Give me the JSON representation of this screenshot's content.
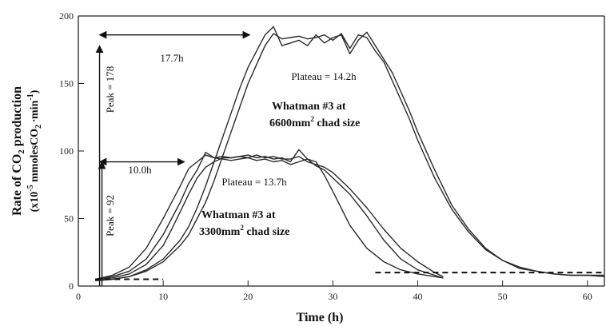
{
  "chart_data": {
    "type": "line",
    "xlabel": "Time (h)",
    "ylabel": {
      "line1_main": "Rate of CO",
      "line1_sub": "2",
      "line1_end": " production",
      "line2_a": "(x10",
      "line2_sup": "-5",
      "line2_b": " mmolesCO",
      "line2_sub": "2",
      "line2_c": " ∙min",
      "line2_sup2": "-1",
      "line2_d": ")"
    },
    "xlim": [
      0,
      62
    ],
    "ylim": [
      0,
      200
    ],
    "xticks": [
      0,
      10,
      20,
      30,
      40,
      50,
      60
    ],
    "yticks": [
      0,
      50,
      100,
      150,
      200
    ],
    "grid": false,
    "series": [
      {
        "x": [
          2,
          4,
          6,
          8,
          10,
          12,
          13,
          14,
          15,
          16,
          17,
          18,
          19,
          20,
          21,
          22,
          23,
          24,
          25,
          26,
          27,
          28,
          29,
          30,
          31,
          32,
          33,
          34,
          35,
          36,
          37,
          38,
          39,
          40,
          42,
          44,
          46,
          48,
          50,
          52,
          54,
          56,
          58,
          60,
          62
        ],
        "y": [
          4,
          5,
          7,
          11,
          18,
          30,
          38,
          50,
          62,
          78,
          96,
          114,
          132,
          150,
          164,
          178,
          187,
          183,
          184,
          185,
          183,
          184,
          186,
          182,
          187,
          176,
          186,
          184,
          174,
          166,
          152,
          138,
          124,
          108,
          80,
          57,
          40,
          27,
          19,
          14,
          11,
          9,
          8,
          8,
          8
        ]
      },
      {
        "x": [
          2,
          4,
          6,
          8,
          10,
          12,
          13,
          14,
          15,
          16,
          17,
          18,
          19,
          20,
          21,
          22,
          23,
          24,
          25,
          26,
          27,
          28,
          29,
          30,
          31,
          32,
          33,
          34,
          35,
          36,
          37,
          38,
          39,
          40,
          42,
          44,
          46,
          48,
          50,
          52,
          54,
          56,
          58,
          60,
          62
        ],
        "y": [
          4,
          5,
          7,
          12,
          20,
          34,
          44,
          58,
          74,
          92,
          110,
          128,
          146,
          162,
          174,
          186,
          192,
          178,
          180,
          182,
          178,
          186,
          180,
          184,
          186,
          172,
          182,
          188,
          178,
          168,
          158,
          144,
          130,
          114,
          86,
          60,
          42,
          28,
          19,
          13,
          11,
          9,
          8,
          8,
          7
        ]
      },
      {
        "x": [
          2,
          4,
          6,
          8,
          10,
          11,
          12,
          13,
          14,
          15,
          16,
          17,
          18,
          19,
          20,
          21,
          22,
          23,
          24,
          25,
          26,
          27,
          28,
          29,
          30,
          32,
          34,
          36,
          38,
          40,
          42,
          43
        ],
        "y": [
          5,
          8,
          14,
          28,
          50,
          62,
          74,
          87,
          92,
          97,
          95,
          96,
          95,
          96,
          97,
          95,
          96,
          94,
          95,
          92,
          101,
          94,
          92,
          82,
          70,
          45,
          28,
          18,
          12,
          9,
          7,
          6
        ]
      },
      {
        "x": [
          2,
          4,
          6,
          8,
          10,
          11,
          12,
          13,
          14,
          15,
          16,
          17,
          18,
          19,
          20,
          21,
          22,
          23,
          24,
          25,
          26,
          27,
          28,
          29,
          30,
          32,
          34,
          36,
          38,
          40,
          42,
          43
        ],
        "y": [
          5,
          7,
          11,
          20,
          38,
          50,
          62,
          76,
          86,
          99,
          95,
          94,
          93,
          94,
          95,
          93,
          94,
          92,
          93,
          90,
          92,
          94,
          89,
          86,
          80,
          68,
          52,
          34,
          20,
          12,
          8,
          6
        ]
      },
      {
        "x": [
          2,
          4,
          6,
          8,
          10,
          11,
          12,
          13,
          14,
          15,
          16,
          17,
          18,
          19,
          20,
          21,
          22,
          23,
          24,
          25,
          26,
          27,
          28,
          29,
          30,
          32,
          34,
          36,
          38,
          40,
          42,
          43
        ],
        "y": [
          5,
          6,
          9,
          16,
          30,
          42,
          55,
          68,
          80,
          88,
          92,
          95,
          95,
          96,
          95,
          97,
          95,
          96,
          94,
          94,
          96,
          92,
          90,
          88,
          84,
          72,
          58,
          42,
          28,
          18,
          10,
          7
        ]
      }
    ],
    "baselines": [
      {
        "x": [
          2,
          10
        ],
        "y": 5
      },
      {
        "x": [
          35,
          62
        ],
        "y": 10
      }
    ],
    "annotations": {
      "peak1_text": "Peak = 178",
      "peak1_value": 178,
      "peak2_text": "Peak = 92",
      "peak2_value": 92,
      "duration1_text": "17.7h",
      "duration1_range": [
        2.5,
        20.2
      ],
      "duration1_y": 186,
      "duration2_text": "10.0h",
      "duration2_range": [
        2.5,
        12.5
      ],
      "duration2_y": 92,
      "plateau1_text": "Plateau = 14.2h",
      "plateau2_text": "Plateau = 13.7h",
      "condition1_line1": "Whatman #3 at",
      "condition1_line2_a": "6600mm",
      "condition1_line2_sup": "2",
      "condition1_line2_b": " chad size",
      "condition2_line1": "Whatman #3 at",
      "condition2_line2_a": "3300mm",
      "condition2_line2_sup": "2",
      "condition2_line2_b": " chad size"
    }
  }
}
